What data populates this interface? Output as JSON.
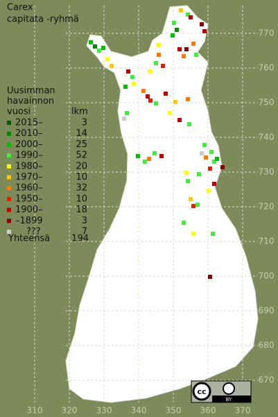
{
  "title": [
    "Carex",
    "capitata -ryhmä"
  ],
  "legend": {
    "header": [
      "Uusimman",
      "havainnon"
    ],
    "col_year": "vuosi",
    "col_count": "lkm",
    "rows": [
      {
        "label": "2015–",
        "count": 3,
        "color": "#005a00"
      },
      {
        "label": "2010–",
        "count": 14,
        "color": "#008a00"
      },
      {
        "label": "2000–",
        "count": 25,
        "color": "#00c000"
      },
      {
        "label": "1990–",
        "count": 52,
        "color": "#3cf03c"
      },
      {
        "label": "1980–",
        "count": 20,
        "color": "#ffff00"
      },
      {
        "label": "1970–",
        "count": 10,
        "color": "#ffc800"
      },
      {
        "label": "1960–",
        "count": 32,
        "color": "#ff7800"
      },
      {
        "label": "1950–",
        "count": 10,
        "color": "#e02000"
      },
      {
        "label": "1900–",
        "count": 18,
        "color": "#c00000"
      },
      {
        "label": "–1899",
        "count": 3,
        "color": "#880000"
      },
      {
        "label": "???",
        "count": 7,
        "color": "#cccccc"
      }
    ],
    "total": {
      "label": "Yhteensä",
      "count": 194
    }
  },
  "grid": {
    "x_labels": [
      310,
      320,
      330,
      340,
      350,
      360,
      370
    ],
    "y_labels": [
      670,
      680,
      690,
      700,
      710,
      720,
      730,
      740,
      750,
      760,
      770
    ]
  },
  "license": {
    "cc": "cc",
    "by": "BY"
  }
}
